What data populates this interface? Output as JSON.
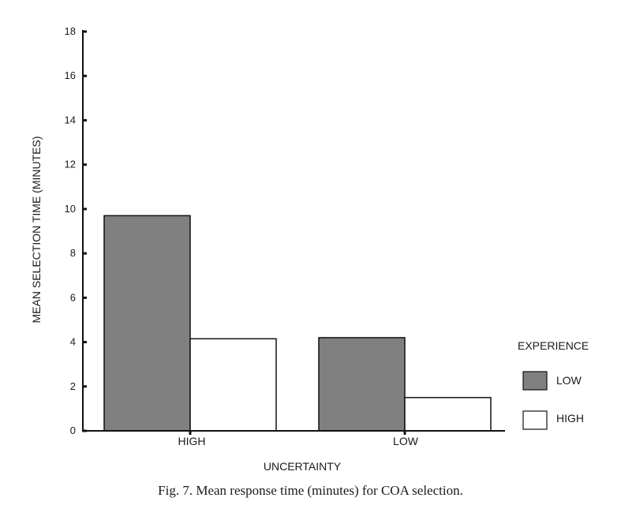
{
  "caption": "Fig. 7.  Mean response time (minutes) for COA selection.",
  "colors": {
    "low": "#808080",
    "high": "#ffffff",
    "stroke": "#111111"
  },
  "chart_data": {
    "type": "bar",
    "xlabel": "UNCERTAINTY",
    "ylabel": "MEAN SELECTION TIME (MINUTES)",
    "categories": [
      "HIGH",
      "LOW"
    ],
    "ylim": [
      0,
      18
    ],
    "yticks": [
      "0",
      "2",
      "4",
      "6",
      "8",
      "10",
      "12",
      "14",
      "16",
      "18"
    ],
    "legend": {
      "title": "EXPERIENCE",
      "placement": "right"
    },
    "series": [
      {
        "name": "LOW",
        "values": [
          9.7,
          4.2
        ]
      },
      {
        "name": "HIGH",
        "values": [
          4.15,
          1.5
        ]
      }
    ],
    "grid": false
  }
}
